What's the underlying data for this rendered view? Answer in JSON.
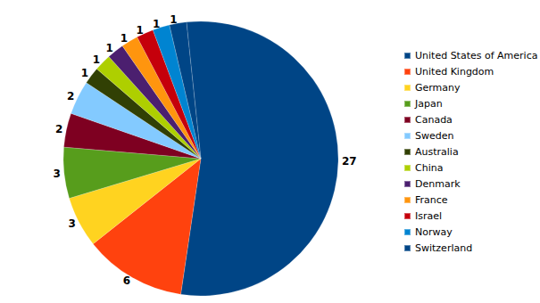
{
  "chart_data": {
    "type": "pie",
    "categories": [
      "United States of America",
      "United Kingdom",
      "Germany",
      "Japan",
      "Canada",
      "Sweden",
      "Australia",
      "China",
      "Denmark",
      "France",
      "Israel",
      "Norway",
      "Switzerland"
    ],
    "values": [
      27,
      6,
      3,
      3,
      2,
      2,
      1,
      1,
      1,
      1,
      1,
      1,
      1
    ],
    "colors": [
      "#004586",
      "#ff420e",
      "#ffd320",
      "#579d1c",
      "#7e0021",
      "#83caff",
      "#314004",
      "#aecf00",
      "#4b1f6f",
      "#ff950e",
      "#c5000b",
      "#0084d1",
      "#004586"
    ],
    "legend": "right",
    "data_labels": true
  }
}
